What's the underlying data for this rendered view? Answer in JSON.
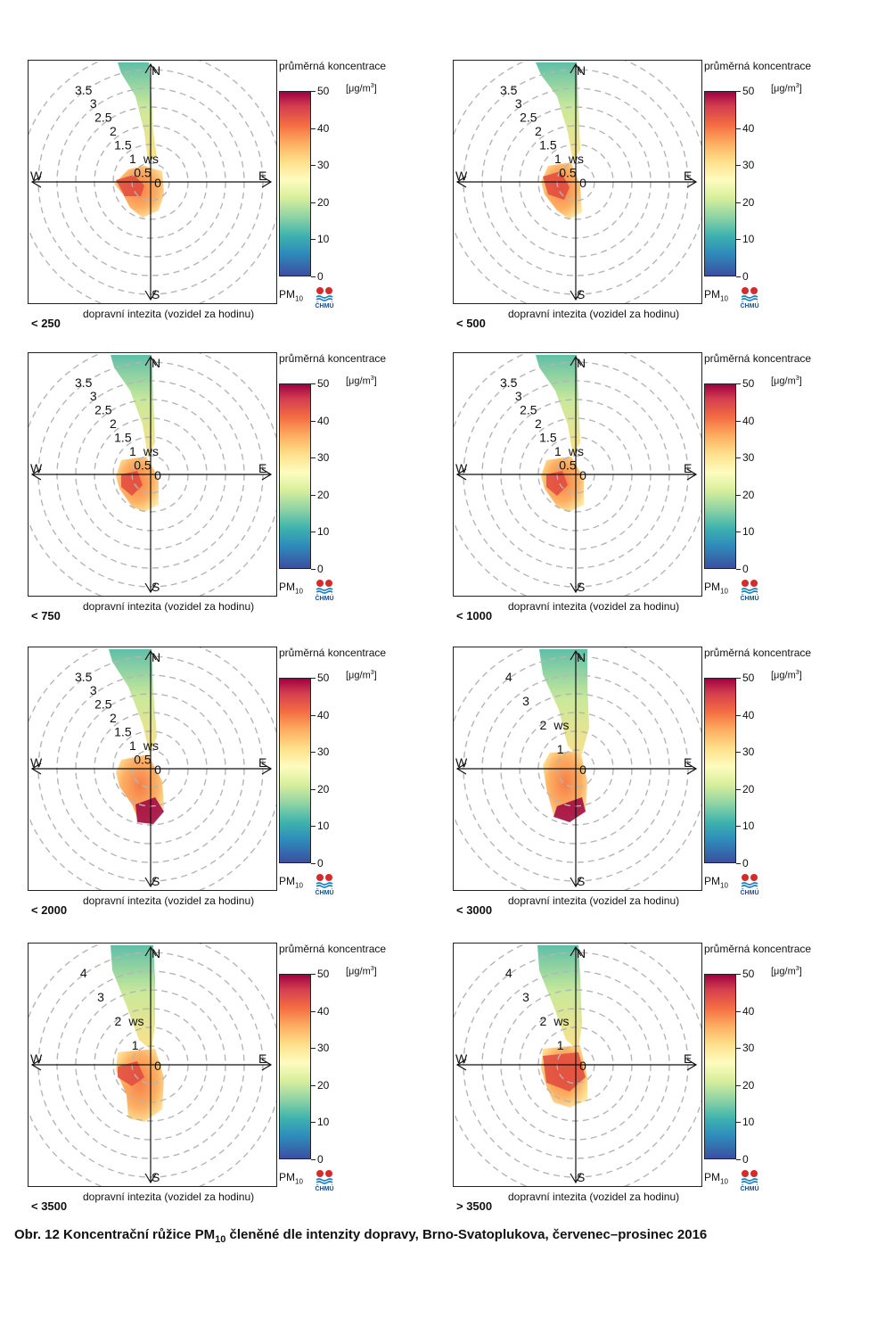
{
  "caption": {
    "prefix": "Obr. 12  Koncentrační růžice PM",
    "subscript": "10",
    "suffix": " členěné dle intenzity dopravy, Brno-Svatoplukova, červenec–prosinec 2016"
  },
  "legend": {
    "title": "průměrná koncentrace",
    "unit_base": "[μg/m",
    "unit_sup": "3",
    "unit_end": "]",
    "ticks": [
      "0",
      "10",
      "20",
      "30",
      "40",
      "50"
    ],
    "pollutant_base": "PM",
    "pollutant_sub": "10",
    "logo_text": "ČHMÚ"
  },
  "axis_labels": {
    "n": "N",
    "s": "S",
    "e": "E",
    "w": "W",
    "ws": "ws"
  },
  "traffic_label": "dopravní intezita (vozidel za hodinu)",
  "chart_data": [
    {
      "type": "polar",
      "panel": "< 250",
      "label": "< 250",
      "ring_labels": [
        "0",
        "0.5",
        "1",
        "1.5",
        "2",
        "2.5",
        "3",
        "3.5"
      ],
      "ws_label_ring": "1",
      "zlim": [
        0,
        50
      ]
    },
    {
      "type": "polar",
      "panel": "< 500",
      "label": "< 500",
      "ring_labels": [
        "0",
        "0.5",
        "1",
        "1.5",
        "2",
        "2.5",
        "3",
        "3.5"
      ],
      "ws_label_ring": "1",
      "zlim": [
        0,
        50
      ]
    },
    {
      "type": "polar",
      "panel": "< 750",
      "label": "< 750",
      "ring_labels": [
        "0",
        "0.5",
        "1",
        "1.5",
        "2",
        "2.5",
        "3",
        "3.5"
      ],
      "ws_label_ring": "1",
      "zlim": [
        0,
        50
      ]
    },
    {
      "type": "polar",
      "panel": "< 1000",
      "label": "< 1000",
      "ring_labels": [
        "0",
        "0.5",
        "1",
        "1.5",
        "2",
        "2.5",
        "3",
        "3.5"
      ],
      "ws_label_ring": "1",
      "zlim": [
        0,
        50
      ]
    },
    {
      "type": "polar",
      "panel": "< 2000",
      "label": "< 2000",
      "ring_labels": [
        "0",
        "0.5",
        "1",
        "1.5",
        "2",
        "2.5",
        "3",
        "3.5"
      ],
      "ws_label_ring": "1",
      "zlim": [
        0,
        50
      ]
    },
    {
      "type": "polar",
      "panel": "< 3000",
      "label": "< 3000",
      "ring_labels": [
        "0",
        "1",
        "2",
        "3",
        "4"
      ],
      "ws_label_ring": "2",
      "zlim": [
        0,
        50
      ]
    },
    {
      "type": "polar",
      "panel": "< 3500",
      "label": "< 3500",
      "ring_labels": [
        "0",
        "1",
        "2",
        "3",
        "4"
      ],
      "ws_label_ring": "2",
      "zlim": [
        0,
        50
      ]
    },
    {
      "type": "polar",
      "panel": "> 3500",
      "label": "> 3500",
      "ring_labels": [
        "0",
        "1",
        "2",
        "3",
        "4"
      ],
      "ws_label_ring": "2",
      "zlim": [
        0,
        50
      ]
    }
  ]
}
